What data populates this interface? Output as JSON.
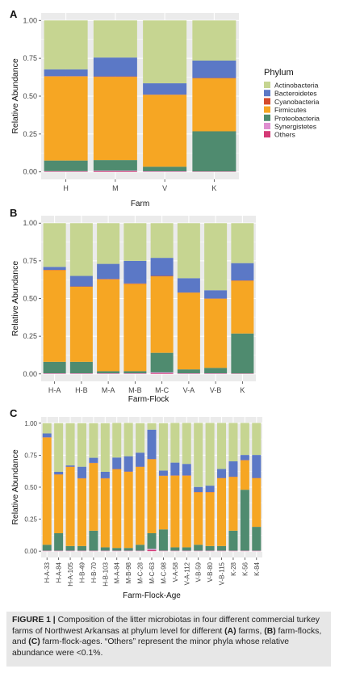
{
  "legend": {
    "title": "Phylum",
    "labels": [
      "Actinobacteria",
      "Bacteroidetes",
      "Cyanobacteria",
      "Firmicutes",
      "Proteobacteria",
      "Synergistetes",
      "Others"
    ]
  },
  "colors": {
    "Actinobacteria": "#c6d591",
    "Bacteroidetes": "#5b78c6",
    "Cyanobacteria": "#d54b2c",
    "Firmicutes": "#f6a623",
    "Proteobacteria": "#4f8b6f",
    "Synergistetes": "#de8fd0",
    "Others": "#d43a76",
    "panel_bg": "#ebebeb",
    "grid": "#ffffff"
  },
  "caption": {
    "label": "FIGURE 1 |",
    "t1": " Composition of the litter microbiotas in four different commercial turkey farms of Northwest Arkansas at phylum level for different ",
    "a": "(A)",
    "t2": " farms, ",
    "b": "(B)",
    "t3": " farm-flocks, and ",
    "c": "(C)",
    "t4": " farm-flock-ages. “Others” represent the minor phyla whose relative abundance were <0.1%."
  },
  "chart_data": [
    {
      "panel": "A",
      "type": "bar",
      "stacked": true,
      "xlabel": "Farm",
      "ylabel": "Relative Abundance",
      "ylim": [
        0,
        1
      ],
      "yticks": [
        "0.00",
        "0.25",
        "0.50",
        "0.75",
        "1.00"
      ],
      "categories": [
        "H",
        "M",
        "V",
        "K"
      ],
      "series": [
        {
          "name": "Others",
          "values": [
            0.003,
            0.004,
            0.002,
            0.002
          ]
        },
        {
          "name": "Synergistetes",
          "values": [
            0.002,
            0.004,
            0.002,
            0.001
          ]
        },
        {
          "name": "Proteobacteria",
          "values": [
            0.07,
            0.07,
            0.03,
            0.265
          ]
        },
        {
          "name": "Cyanobacteria",
          "values": [
            0.002,
            0.003,
            0.001,
            0.002
          ]
        },
        {
          "name": "Firmicutes",
          "values": [
            0.555,
            0.549,
            0.475,
            0.35
          ]
        },
        {
          "name": "Bacteroidetes",
          "values": [
            0.045,
            0.125,
            0.075,
            0.115
          ]
        },
        {
          "name": "Actinobacteria",
          "values": [
            0.323,
            0.245,
            0.415,
            0.265
          ]
        }
      ]
    },
    {
      "panel": "B",
      "type": "bar",
      "stacked": true,
      "xlabel": "Farm-Flock",
      "ylabel": "Relative Abundance",
      "ylim": [
        0,
        1
      ],
      "yticks": [
        "0.00",
        "0.25",
        "0.50",
        "0.75",
        "1.00"
      ],
      "categories": [
        "H-A",
        "H-B",
        "M-A",
        "M-B",
        "M-C",
        "V-A",
        "V-B",
        "K"
      ],
      "series": [
        {
          "name": "Others",
          "values": [
            0.002,
            0.002,
            0.002,
            0.002,
            0.004,
            0.002,
            0.002,
            0.002
          ]
        },
        {
          "name": "Synergistetes",
          "values": [
            0.002,
            0.002,
            0.002,
            0.002,
            0.006,
            0.002,
            0.002,
            0.001
          ]
        },
        {
          "name": "Proteobacteria",
          "values": [
            0.076,
            0.076,
            0.014,
            0.014,
            0.13,
            0.026,
            0.036,
            0.265
          ]
        },
        {
          "name": "Cyanobacteria",
          "values": [
            0.002,
            0.002,
            0.003,
            0.003,
            0.003,
            0.001,
            0.001,
            0.002
          ]
        },
        {
          "name": "Firmicutes",
          "values": [
            0.608,
            0.498,
            0.609,
            0.579,
            0.507,
            0.509,
            0.459,
            0.35
          ]
        },
        {
          "name": "Bacteroidetes",
          "values": [
            0.02,
            0.07,
            0.1,
            0.15,
            0.12,
            0.095,
            0.055,
            0.115
          ]
        },
        {
          "name": "Actinobacteria",
          "values": [
            0.29,
            0.35,
            0.27,
            0.25,
            0.23,
            0.365,
            0.445,
            0.265
          ]
        }
      ]
    },
    {
      "panel": "C",
      "type": "bar",
      "stacked": true,
      "xlabel": "Farm-Flock-Age",
      "ylabel": "Relative Abundance",
      "ylim": [
        0,
        1
      ],
      "yticks": [
        "0.00",
        "0.25",
        "0.50",
        "0.75",
        "1.00"
      ],
      "categories": [
        "H-A-33",
        "H-A-84",
        "H-A-105",
        "H-B-49",
        "H-B-70",
        "H-B-103",
        "M-A-84",
        "M-B-98",
        "M-C-28",
        "M-C-63",
        "M-C-98",
        "V-A-58",
        "V-A-112",
        "V-B-59",
        "V-B-80",
        "V-B-115",
        "K-28",
        "K-56",
        "K-84"
      ],
      "series": [
        {
          "name": "Others",
          "values": [
            0.002,
            0.002,
            0.002,
            0.002,
            0.002,
            0.002,
            0.002,
            0.002,
            0.002,
            0.008,
            0.002,
            0.002,
            0.002,
            0.002,
            0.002,
            0.002,
            0.002,
            0.002,
            0.002
          ]
        },
        {
          "name": "Synergistetes",
          "values": [
            0.002,
            0.002,
            0.002,
            0.002,
            0.002,
            0.002,
            0.002,
            0.002,
            0.002,
            0.01,
            0.002,
            0.002,
            0.002,
            0.002,
            0.002,
            0.002,
            0.002,
            0.002,
            0.002
          ]
        },
        {
          "name": "Proteobacteria",
          "values": [
            0.046,
            0.136,
            0.036,
            0.036,
            0.156,
            0.026,
            0.021,
            0.021,
            0.046,
            0.122,
            0.166,
            0.026,
            0.026,
            0.046,
            0.036,
            0.036,
            0.156,
            0.476,
            0.186
          ]
        },
        {
          "name": "Cyanobacteria",
          "values": [
            0.002,
            0.002,
            0.002,
            0.002,
            0.002,
            0.002,
            0.002,
            0.002,
            0.002,
            0.002,
            0.002,
            0.002,
            0.002,
            0.002,
            0.002,
            0.002,
            0.002,
            0.002,
            0.002
          ]
        },
        {
          "name": "Firmicutes",
          "values": [
            0.838,
            0.458,
            0.618,
            0.528,
            0.528,
            0.538,
            0.615,
            0.595,
            0.608,
            0.578,
            0.418,
            0.56,
            0.56,
            0.41,
            0.42,
            0.53,
            0.42,
            0.23,
            0.38
          ]
        },
        {
          "name": "Bacteroidetes",
          "values": [
            0.03,
            0.02,
            0.01,
            0.09,
            0.04,
            0.05,
            0.09,
            0.12,
            0.11,
            0.23,
            0.04,
            0.1,
            0.09,
            0.04,
            0.05,
            0.07,
            0.12,
            0.04,
            0.18
          ]
        },
        {
          "name": "Actinobacteria",
          "values": [
            0.08,
            0.38,
            0.33,
            0.34,
            0.27,
            0.38,
            0.27,
            0.26,
            0.23,
            0.05,
            0.37,
            0.31,
            0.32,
            0.5,
            0.49,
            0.36,
            0.3,
            0.25,
            0.25
          ]
        }
      ]
    }
  ]
}
